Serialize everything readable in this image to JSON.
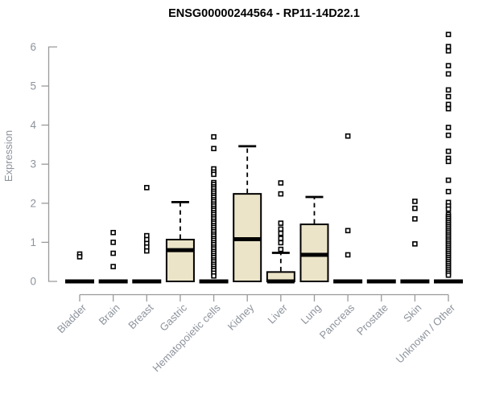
{
  "title": "ENSG00000244564 - RP11-14D22.1",
  "chart_data": {
    "type": "box",
    "title": "ENSG00000244564 - RP11-14D22.1",
    "xlabel": "",
    "ylabel": "Expression",
    "ylim": [
      0,
      6.5
    ],
    "yticks": [
      0,
      1,
      2,
      3,
      4,
      5,
      6
    ],
    "grid": false,
    "legend": "none",
    "categories": [
      "Bladder",
      "Brain",
      "Breast",
      "Gastric",
      "Hematopoietic cells",
      "Kidney",
      "Liver",
      "Lung",
      "Pancreas",
      "Prostate",
      "Skin",
      "Unknown / Other"
    ],
    "series": [
      {
        "name": "Bladder",
        "q1": 0,
        "median": 0,
        "q3": 0,
        "whisker_low": 0,
        "whisker_high": 0,
        "outliers": [
          0.7,
          0.63
        ]
      },
      {
        "name": "Brain",
        "q1": 0,
        "median": 0,
        "q3": 0,
        "whisker_low": 0,
        "whisker_high": 0,
        "outliers": [
          1.25,
          1.0,
          0.72,
          0.38
        ]
      },
      {
        "name": "Breast",
        "q1": 0,
        "median": 0,
        "q3": 0,
        "whisker_low": 0,
        "whisker_high": 0,
        "outliers": [
          2.4,
          1.17,
          1.07,
          0.97,
          0.88,
          0.78
        ]
      },
      {
        "name": "Gastric",
        "q1": 0,
        "median": 0.8,
        "q3": 1.07,
        "whisker_low": 0,
        "whisker_high": 2.03,
        "outliers": []
      },
      {
        "name": "Hematopoietic cells",
        "q1": 0,
        "median": 0,
        "q3": 0,
        "whisker_low": 0,
        "whisker_high": 0,
        "outliers": [
          3.7,
          3.4,
          2.88,
          2.8,
          2.74,
          2.53,
          2.48,
          2.42,
          2.37,
          2.31,
          2.26,
          2.2,
          2.15,
          2.09,
          2.04,
          1.98,
          1.93,
          1.87,
          1.82,
          1.76,
          1.71,
          1.65,
          1.6,
          1.54,
          1.49,
          1.43,
          1.38,
          1.32,
          1.27,
          1.21,
          1.16,
          1.1,
          1.05,
          0.99,
          0.94,
          0.88,
          0.83,
          0.77,
          0.72,
          0.66,
          0.61,
          0.55,
          0.5,
          0.44,
          0.39,
          0.33,
          0.28,
          0.21,
          0.14
        ]
      },
      {
        "name": "Kidney",
        "q1": 0,
        "median": 1.08,
        "q3": 2.24,
        "whisker_low": 0,
        "whisker_high": 3.46,
        "outliers": []
      },
      {
        "name": "Liver",
        "q1": 0,
        "median": 0,
        "q3": 0.24,
        "whisker_low": 0,
        "whisker_high": 0.73,
        "outliers": [
          2.52,
          2.24,
          1.49,
          1.34,
          1.23,
          1.1,
          0.99,
          0.82
        ]
      },
      {
        "name": "Lung",
        "q1": 0,
        "median": 0.68,
        "q3": 1.46,
        "whisker_low": 0,
        "whisker_high": 2.16,
        "outliers": []
      },
      {
        "name": "Pancreas",
        "q1": 0,
        "median": 0,
        "q3": 0,
        "whisker_low": 0,
        "whisker_high": 0,
        "outliers": [
          3.72,
          1.3,
          0.68
        ]
      },
      {
        "name": "Prostate",
        "q1": 0,
        "median": 0,
        "q3": 0,
        "whisker_low": 0,
        "whisker_high": 0,
        "outliers": []
      },
      {
        "name": "Skin",
        "q1": 0,
        "median": 0,
        "q3": 0,
        "whisker_low": 0,
        "whisker_high": 0,
        "outliers": [
          2.05,
          1.87,
          1.6,
          0.96
        ]
      },
      {
        "name": "Unknown / Other",
        "q1": 0,
        "median": 0,
        "q3": 0,
        "whisker_low": 0,
        "whisker_high": 0,
        "outliers": [
          6.32,
          6.01,
          5.9,
          5.52,
          5.31,
          4.9,
          4.73,
          4.53,
          4.42,
          3.94,
          3.74,
          3.33,
          3.15,
          3.07,
          2.59,
          2.3,
          2.02,
          1.93,
          1.85,
          1.71,
          1.66,
          1.61,
          1.56,
          1.51,
          1.46,
          1.41,
          1.36,
          1.31,
          1.26,
          1.21,
          1.16,
          1.11,
          1.06,
          1.01,
          0.96,
          0.91,
          0.86,
          0.81,
          0.76,
          0.71,
          0.66,
          0.61,
          0.56,
          0.51,
          0.46,
          0.41,
          0.36,
          0.31,
          0.26,
          0.21,
          0.16
        ]
      }
    ],
    "colors": {
      "background": "#ffffff",
      "box_fill": "#EBE4C8",
      "box_stroke": "#000000",
      "median": "#000000",
      "outlier_stroke": "#000000",
      "outlier_fill": "#ffffff",
      "axis_line": "#9A9A9A",
      "tick_text": "#8D939C",
      "title_text": "#000000"
    }
  }
}
